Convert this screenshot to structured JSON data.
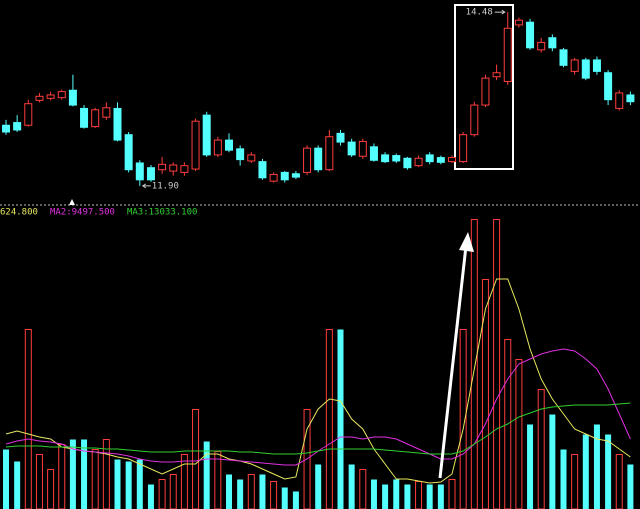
{
  "chart_data": [
    {
      "type": "candlestick",
      "ylim": [
        11.72,
        14.66
      ],
      "up_color": "#ff3d3d",
      "down_color": "#54ffff",
      "high_label": "14.48",
      "low_label": "11.90",
      "open": [
        12.8,
        12.84,
        12.8,
        13.17,
        13.2,
        13.21,
        13.32,
        13.05,
        12.78,
        12.92,
        13.05,
        12.66,
        12.24,
        12.17,
        12.14,
        12.12,
        12.1,
        12.15,
        12.95,
        12.36,
        12.58,
        12.45,
        12.27,
        12.26,
        11.97,
        12.1,
        12.08,
        12.1,
        12.46,
        12.14,
        12.68,
        12.55,
        12.34,
        12.48,
        12.36,
        12.35,
        12.31,
        12.2,
        12.36,
        12.32,
        12.26,
        12.26,
        12.66,
        13.1,
        13.52,
        13.45,
        14.29,
        14.33,
        13.92,
        14.1,
        13.92,
        13.6,
        13.77,
        13.77,
        13.58,
        13.05,
        13.25
      ],
      "high": [
        12.88,
        12.95,
        13.18,
        13.28,
        13.3,
        13.33,
        13.55,
        13.1,
        13.06,
        13.14,
        13.14,
        12.7,
        12.28,
        12.21,
        12.33,
        12.25,
        12.25,
        12.9,
        13.0,
        12.63,
        12.68,
        12.5,
        12.4,
        12.3,
        12.1,
        12.12,
        12.12,
        12.5,
        12.5,
        12.73,
        12.73,
        12.6,
        12.6,
        12.53,
        12.4,
        12.38,
        12.33,
        12.35,
        12.4,
        12.35,
        12.35,
        12.7,
        13.15,
        13.55,
        13.7,
        14.48,
        14.4,
        14.38,
        14.1,
        14.15,
        13.95,
        13.8,
        13.8,
        13.82,
        13.62,
        13.32,
        13.3
      ],
      "low": [
        12.66,
        12.7,
        12.78,
        13.14,
        13.17,
        13.18,
        13.08,
        12.75,
        12.76,
        12.88,
        12.56,
        12.1,
        11.9,
        11.96,
        12.08,
        12.05,
        12.05,
        12.12,
        12.33,
        12.33,
        12.4,
        12.2,
        12.24,
        11.99,
        11.95,
        11.95,
        12.0,
        12.06,
        12.1,
        12.12,
        12.5,
        12.33,
        12.3,
        12.26,
        12.24,
        12.24,
        12.14,
        12.18,
        12.22,
        12.22,
        12.24,
        12.24,
        12.63,
        13.07,
        13.47,
        13.4,
        14.25,
        13.92,
        13.88,
        13.9,
        13.66,
        13.55,
        13.47,
        13.55,
        13.1,
        13.02,
        13.1
      ],
      "close": [
        12.7,
        12.73,
        13.12,
        13.23,
        13.25,
        13.3,
        13.1,
        12.77,
        13.03,
        13.06,
        12.58,
        12.14,
        11.99,
        11.99,
        12.22,
        12.21,
        12.2,
        12.86,
        12.36,
        12.58,
        12.43,
        12.29,
        12.36,
        12.02,
        12.07,
        11.99,
        12.03,
        12.46,
        12.14,
        12.63,
        12.55,
        12.36,
        12.56,
        12.28,
        12.26,
        12.27,
        12.17,
        12.31,
        12.26,
        12.25,
        12.32,
        12.66,
        13.1,
        13.5,
        13.58,
        14.24,
        14.36,
        13.95,
        14.03,
        13.95,
        13.69,
        13.77,
        13.5,
        13.6,
        13.18,
        13.28,
        13.15
      ]
    },
    {
      "type": "bar",
      "ylim": [
        0,
        36750
      ],
      "values": [
        7500,
        6000,
        22500,
        6875,
        5000,
        8125,
        8750,
        8750,
        7500,
        8750,
        6250,
        6000,
        6250,
        3125,
        3750,
        4375,
        6875,
        12500,
        8500,
        7250,
        4375,
        3750,
        4375,
        4375,
        3500,
        2750,
        2250,
        12500,
        5625,
        22500,
        22500,
        5625,
        5000,
        3750,
        3125,
        3750,
        3125,
        3500,
        3125,
        3125,
        3750,
        22500,
        36250,
        28750,
        36250,
        21250,
        18750,
        10625,
        15000,
        11875,
        7500,
        6875,
        9375,
        10625,
        9375,
        6875,
        5625
      ],
      "series": [
        {
          "name": "624.800",
          "color": "#e8e860",
          "values": [
            9375,
            9750,
            9375,
            9000,
            8750,
            7750,
            7500,
            7250,
            7125,
            6875,
            6500,
            6250,
            5625,
            5000,
            4375,
            5000,
            5625,
            5625,
            6875,
            6875,
            6250,
            6000,
            5625,
            5000,
            4375,
            3750,
            4000,
            10000,
            12500,
            13750,
            13500,
            11250,
            10000,
            7500,
            5625,
            3750,
            3750,
            3500,
            3250,
            3375,
            4375,
            10000,
            17500,
            25000,
            28750,
            28750,
            25000,
            20000,
            16250,
            13750,
            11875,
            10000,
            9375,
            8750,
            8500,
            7500,
            6500
          ]
        },
        {
          "name": "MA2:9497.500",
          "color": "#e030e0",
          "values": [
            8125,
            8500,
            8750,
            8500,
            8375,
            8125,
            7500,
            7250,
            7125,
            7000,
            6875,
            6625,
            6250,
            6000,
            5875,
            5875,
            6000,
            6000,
            6250,
            6250,
            6125,
            6000,
            5875,
            5750,
            5625,
            5500,
            5500,
            6250,
            7250,
            8125,
            9000,
            9000,
            8750,
            9000,
            9000,
            8750,
            8125,
            7500,
            6875,
            6250,
            6250,
            6875,
            8125,
            10625,
            13750,
            16250,
            18125,
            18750,
            19375,
            19750,
            20000,
            19750,
            18750,
            17500,
            15000,
            11875,
            8750
          ]
        },
        {
          "name": "MA3:13033.100",
          "color": "#30d030",
          "values": [
            7750,
            7875,
            7875,
            7875,
            7750,
            7750,
            7750,
            7625,
            7625,
            7500,
            7500,
            7375,
            7250,
            7125,
            7125,
            7125,
            7250,
            7250,
            7250,
            7250,
            7250,
            7125,
            7125,
            7000,
            6875,
            6875,
            6875,
            7000,
            7250,
            7500,
            7500,
            7500,
            7500,
            7500,
            7375,
            7250,
            7125,
            7000,
            6875,
            6875,
            6875,
            7250,
            8125,
            9000,
            10000,
            10625,
            11500,
            12000,
            12500,
            12750,
            12875,
            13000,
            13000,
            13000,
            13000,
            13125,
            13250
          ]
        }
      ]
    }
  ]
}
